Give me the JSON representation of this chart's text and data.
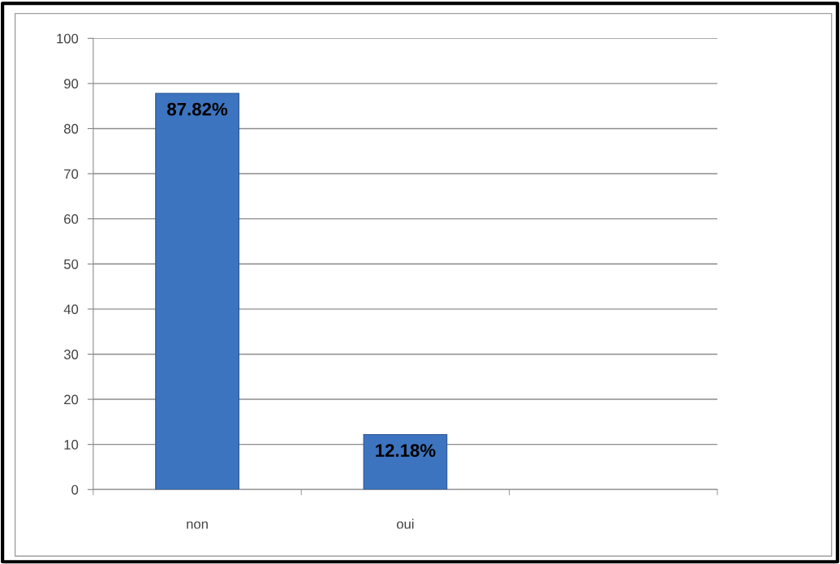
{
  "chart_data": {
    "type": "bar",
    "categories": [
      "non",
      "oui",
      null
    ],
    "values": [
      87.82,
      12.18,
      null
    ],
    "color": "#3d74c0",
    "value_labels": [
      "87.82%",
      "12.18%",
      null
    ],
    "ylim": [
      0,
      100
    ],
    "yticks": [
      0,
      10,
      20,
      30,
      40,
      50,
      60,
      70,
      80,
      90,
      100
    ],
    "grid": "y"
  }
}
